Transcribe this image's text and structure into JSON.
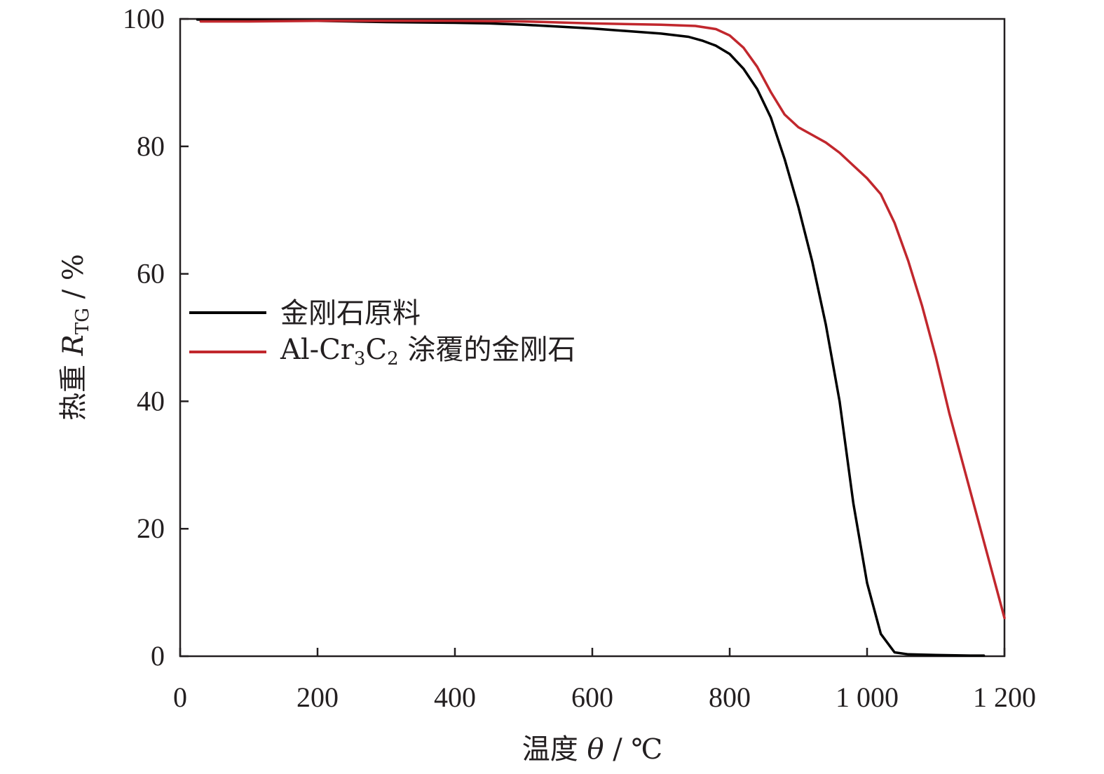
{
  "chart_data": {
    "type": "line",
    "xlabel": {
      "text": "温度 ",
      "var": "θ",
      "unit": " / ℃"
    },
    "ylabel": {
      "text": "热重 ",
      "var": "R",
      "sub": "TG",
      "unit": " / %"
    },
    "xlim": [
      0,
      1200
    ],
    "ylim": [
      0,
      100
    ],
    "x_ticks": [
      0,
      200,
      400,
      600,
      800,
      1000,
      1200
    ],
    "x_tick_labels": [
      "0",
      "200",
      "400",
      "600",
      "800",
      "1 000",
      "1 200"
    ],
    "y_ticks": [
      0,
      20,
      40,
      60,
      80,
      100
    ],
    "y_tick_labels": [
      "0",
      "20",
      "40",
      "60",
      "80",
      "100"
    ],
    "grid": false,
    "legend": {
      "placement": "center-left",
      "entries": [
        {
          "label": "金刚石原料"
        },
        {
          "label_parts": [
            "Al-Cr",
            "3",
            "C",
            "2",
            " 涂覆的金刚石"
          ]
        }
      ]
    },
    "series": [
      {
        "label": "金刚石原料",
        "color": "#000000",
        "points": [
          [
            25,
            99.9
          ],
          [
            100,
            99.8
          ],
          [
            200,
            99.7
          ],
          [
            300,
            99.5
          ],
          [
            400,
            99.4
          ],
          [
            450,
            99.3
          ],
          [
            500,
            99.1
          ],
          [
            550,
            98.8
          ],
          [
            600,
            98.5
          ],
          [
            650,
            98.1
          ],
          [
            700,
            97.7
          ],
          [
            740,
            97.2
          ],
          [
            760,
            96.6
          ],
          [
            780,
            95.8
          ],
          [
            800,
            94.5
          ],
          [
            820,
            92.2
          ],
          [
            840,
            89.0
          ],
          [
            860,
            84.5
          ],
          [
            880,
            78.0
          ],
          [
            900,
            70.5
          ],
          [
            920,
            62.0
          ],
          [
            940,
            52.0
          ],
          [
            960,
            40.0
          ],
          [
            980,
            24.0
          ],
          [
            1000,
            11.5
          ],
          [
            1020,
            3.5
          ],
          [
            1040,
            0.6
          ],
          [
            1060,
            0.3
          ],
          [
            1100,
            0.2
          ],
          [
            1150,
            0.1
          ],
          [
            1170,
            0.1
          ]
        ]
      },
      {
        "label": "Al-Cr3C2 涂覆的金刚石",
        "color": "#c1272d",
        "points": [
          [
            30,
            99.6
          ],
          [
            100,
            99.6
          ],
          [
            200,
            99.7
          ],
          [
            300,
            99.7
          ],
          [
            400,
            99.7
          ],
          [
            500,
            99.6
          ],
          [
            600,
            99.3
          ],
          [
            700,
            99.1
          ],
          [
            750,
            98.9
          ],
          [
            780,
            98.4
          ],
          [
            800,
            97.4
          ],
          [
            820,
            95.5
          ],
          [
            840,
            92.5
          ],
          [
            860,
            88.5
          ],
          [
            880,
            85.0
          ],
          [
            900,
            83.0
          ],
          [
            920,
            81.8
          ],
          [
            940,
            80.6
          ],
          [
            960,
            79.0
          ],
          [
            980,
            77.0
          ],
          [
            1000,
            75.0
          ],
          [
            1020,
            72.5
          ],
          [
            1040,
            68.0
          ],
          [
            1060,
            62.0
          ],
          [
            1080,
            55.0
          ],
          [
            1100,
            47.0
          ],
          [
            1120,
            38.0
          ],
          [
            1140,
            30.0
          ],
          [
            1160,
            22.0
          ],
          [
            1180,
            14.0
          ],
          [
            1200,
            6.0
          ]
        ]
      }
    ]
  }
}
